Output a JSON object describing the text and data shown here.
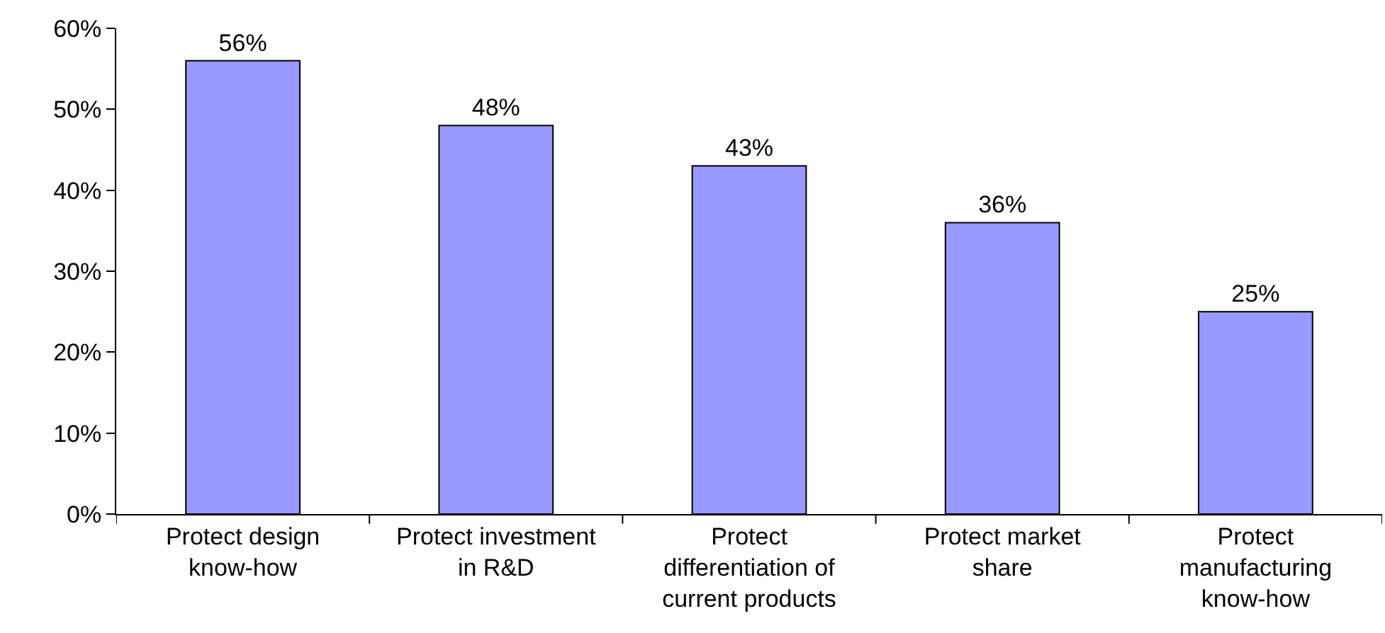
{
  "chart_data": {
    "type": "bar",
    "categories": [
      "Protect design know-how",
      "Protect investment in R&D",
      "Protect differentiation of current products",
      "Protect market share",
      "Protect manufacturing know-how"
    ],
    "values": [
      56,
      48,
      43,
      36,
      25
    ],
    "value_labels": [
      "56%",
      "48%",
      "43%",
      "36%",
      "25%"
    ],
    "color": "#9999ff",
    "ylim": [
      0,
      60
    ],
    "yticks": [
      {
        "value": 0,
        "label": "0%"
      },
      {
        "value": 10,
        "label": "10%"
      },
      {
        "value": 20,
        "label": "20%"
      },
      {
        "value": 30,
        "label": "30%"
      },
      {
        "value": 40,
        "label": "40%"
      },
      {
        "value": 50,
        "label": "50%"
      },
      {
        "value": 60,
        "label": "60%"
      }
    ],
    "grid": false,
    "legend": false
  }
}
